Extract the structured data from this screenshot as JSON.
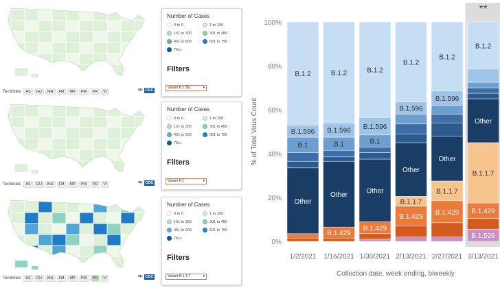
{
  "maps": [
    {
      "territories_label": "Territories",
      "territories": [
        "AS",
        "GU",
        "MH",
        "FM",
        "MP",
        "PW",
        "PR",
        "VI"
      ],
      "territories_highlighted": [],
      "legend_title": "Number of Cases",
      "legend_items": [
        "0 to 0",
        "1 to 150",
        "151 to 300",
        "301 to 450",
        "451 to 600",
        "601 to 750",
        "751+"
      ],
      "filters_label": "Filters",
      "variant_select": "Variant B.1.351",
      "cdc_badge": "CDC"
    },
    {
      "territories_label": "Territories",
      "territories": [
        "AS",
        "GU",
        "MH",
        "FM",
        "MP",
        "PW",
        "PR",
        "VI"
      ],
      "territories_highlighted": [],
      "legend_title": "Number of Cases",
      "legend_items": [
        "0 to 0",
        "1 to 150",
        "151 to 300",
        "301 to 450",
        "451 to 600",
        "601 to 750",
        "751+"
      ],
      "filters_label": "Filters",
      "variant_select": "Variant P.1",
      "cdc_badge": "CDC"
    },
    {
      "territories_label": "Territories",
      "territories": [
        "AS",
        "GU",
        "MH",
        "FM",
        "MP",
        "PW",
        "PR",
        "VI"
      ],
      "territories_highlighted": [
        "PR"
      ],
      "legend_title": "Number of Cases",
      "legend_items": [
        "0 to 0",
        "1 to 150",
        "151 to 300",
        "301 to 450",
        "451 to 600",
        "601 to 750",
        "751+"
      ],
      "filters_label": "Filters",
      "variant_select": "Variant B.1.1.7",
      "cdc_badge": "CDC"
    }
  ],
  "legend_colors": [
    "#ffffff",
    "#d6eed0",
    "#b7e2b2",
    "#8fd0b8",
    "#5ab4c8",
    "#2a86c0",
    "#0d5aa8"
  ],
  "map_colors": {
    "base_light": "#dff0d8",
    "base_lighter": "#eef7ea",
    "border": "#ffffff",
    "high_blue": "#1f7bc4",
    "mid_blue": "#4fa6d6",
    "teal": "#8fd3c4"
  },
  "chart_data": {
    "type": "bar",
    "stacked": true,
    "categories": [
      "1/2/2021",
      "1/16/2021",
      "1/30/2021",
      "2/13/2021",
      "2/27/2021",
      "3/13/2021"
    ],
    "highlighted_category": "3/13/2021",
    "highlight_marker": "**",
    "ylabel": "% of Total Virus Count",
    "xlabel": "Collection date, week ending, biweekly",
    "yticks": [
      "0%",
      "20%",
      "40%",
      "60%",
      "80%",
      "100%"
    ],
    "ylim": [
      0,
      100
    ],
    "series": [
      {
        "name": "B.1.526",
        "color": "#c98fc6",
        "values": [
          0,
          0,
          1.0,
          2.0,
          2.0,
          5.5
        ]
      },
      {
        "name": "",
        "color": "#d65a1e",
        "values": [
          1.5,
          1.5,
          2.5,
          5.0,
          6.5,
          5.0
        ]
      },
      {
        "name": "B.1.429",
        "color": "#ec7a3a",
        "values": [
          2.0,
          5.0,
          5.5,
          9.0,
          10.0,
          7.0
        ]
      },
      {
        "name": "B.1.1.7",
        "color": "#f8c48e",
        "values": [
          0,
          0,
          0,
          4.5,
          9.0,
          27.5
        ]
      },
      {
        "name": "Other",
        "color": "#1a3d66",
        "values": [
          30.0,
          30.0,
          28.5,
          24.5,
          20.5,
          20.0
        ]
      },
      {
        "name": "",
        "color": "#2c5a8c",
        "values": [
          3.0,
          2.0,
          3.0,
          4.0,
          6.0,
          2.5
        ]
      },
      {
        "name": "",
        "color": "#3d6ea6",
        "values": [
          4.0,
          3.0,
          2.5,
          4.5,
          4.0,
          2.5
        ]
      },
      {
        "name": "B.1",
        "color": "#6d9ed0",
        "values": [
          7.0,
          6.0,
          5.5,
          4.5,
          4.0,
          2.5
        ]
      },
      {
        "name": "B.1.596",
        "color": "#9ec4e8",
        "values": [
          5.5,
          6.5,
          8.0,
          5.5,
          6.5,
          6.0
        ]
      },
      {
        "name": "B.1.2",
        "color": "#c6def3",
        "values": [
          47.0,
          46.0,
          43.5,
          36.5,
          31.5,
          21.5
        ]
      }
    ],
    "bar_labels": [
      {
        "series": "B.1.2",
        "text": "B.1.2",
        "bars": [
          0,
          1,
          2,
          3,
          4,
          5
        ],
        "light": false
      },
      {
        "series": "B.1.596",
        "text": "B.1.596",
        "bars": [
          0,
          1,
          2,
          3,
          4
        ],
        "light": false
      },
      {
        "series": "B.1",
        "text": "B.1",
        "bars": [
          0,
          1,
          2
        ],
        "light": false
      },
      {
        "series": "Other",
        "text": "Other",
        "bars": [
          0,
          1,
          2,
          3,
          4,
          5
        ],
        "light": true
      },
      {
        "series": "B.1.1.7",
        "text": "B.1.1.7",
        "bars": [
          3,
          4,
          5
        ],
        "light": false
      },
      {
        "series": "B.1.429",
        "text": "B.1.429",
        "bars": [
          1,
          2,
          3,
          4,
          5
        ],
        "light": true
      },
      {
        "series": "B.1.526",
        "text": "B.1.526",
        "bars": [
          5
        ],
        "light": true
      }
    ]
  }
}
